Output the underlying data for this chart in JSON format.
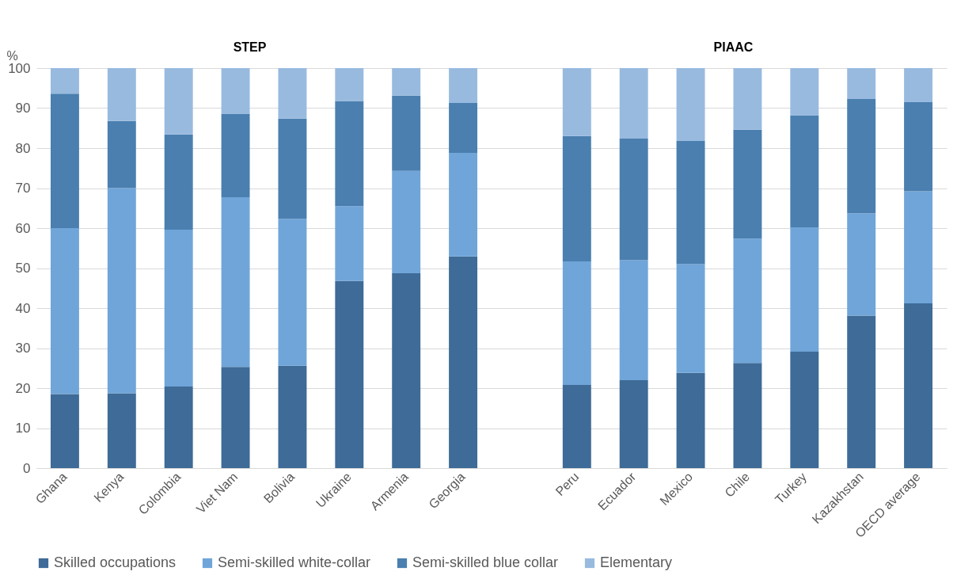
{
  "chart_data": {
    "type": "bar",
    "stacked": true,
    "ylabel": "%",
    "annotations": [
      "STEP",
      "PIAAC"
    ],
    "categories": [
      "Ghana",
      "Kenya",
      "Colombia",
      "Viet Nam",
      "Bolivia",
      "Ukraine",
      "Armenia",
      "Georgia",
      null,
      "Peru",
      "Ecuador",
      "Mexico",
      "Chile",
      "Turkey",
      "Kazakhstan",
      "OECD average"
    ],
    "series": [
      {
        "name": "Skilled occupations",
        "color": "#3e6b97",
        "values": [
          18.5,
          18.7,
          20.4,
          25.3,
          25.6,
          46.8,
          48.7,
          52.9,
          null,
          20.8,
          22.0,
          23.8,
          26.3,
          29.1,
          38.1,
          41.2
        ]
      },
      {
        "name": "Semi-skilled white-collar",
        "color": "#70a5d9",
        "values": [
          41.5,
          51.3,
          39.2,
          42.4,
          36.7,
          18.7,
          25.6,
          25.9,
          null,
          30.9,
          30.0,
          27.2,
          31.1,
          31.1,
          25.6,
          28.0
        ]
      },
      {
        "name": "Semi-skilled blue collar",
        "color": "#4a7fb0",
        "values": [
          33.6,
          16.8,
          23.8,
          20.9,
          25.1,
          26.3,
          18.8,
          12.5,
          null,
          31.3,
          30.4,
          30.8,
          27.2,
          28.0,
          28.6,
          22.3
        ]
      },
      {
        "name": "Elementary",
        "color": "#98badf",
        "values": [
          6.4,
          13.2,
          16.6,
          11.4,
          12.6,
          8.2,
          6.9,
          8.7,
          null,
          17.0,
          17.6,
          18.2,
          15.4,
          11.8,
          7.7,
          8.5
        ]
      }
    ],
    "ylim": [
      0,
      100
    ],
    "yticks": [
      0,
      10,
      20,
      30,
      40,
      50,
      60,
      70,
      80,
      90,
      100
    ],
    "grid": "y",
    "legend": "bottom"
  }
}
